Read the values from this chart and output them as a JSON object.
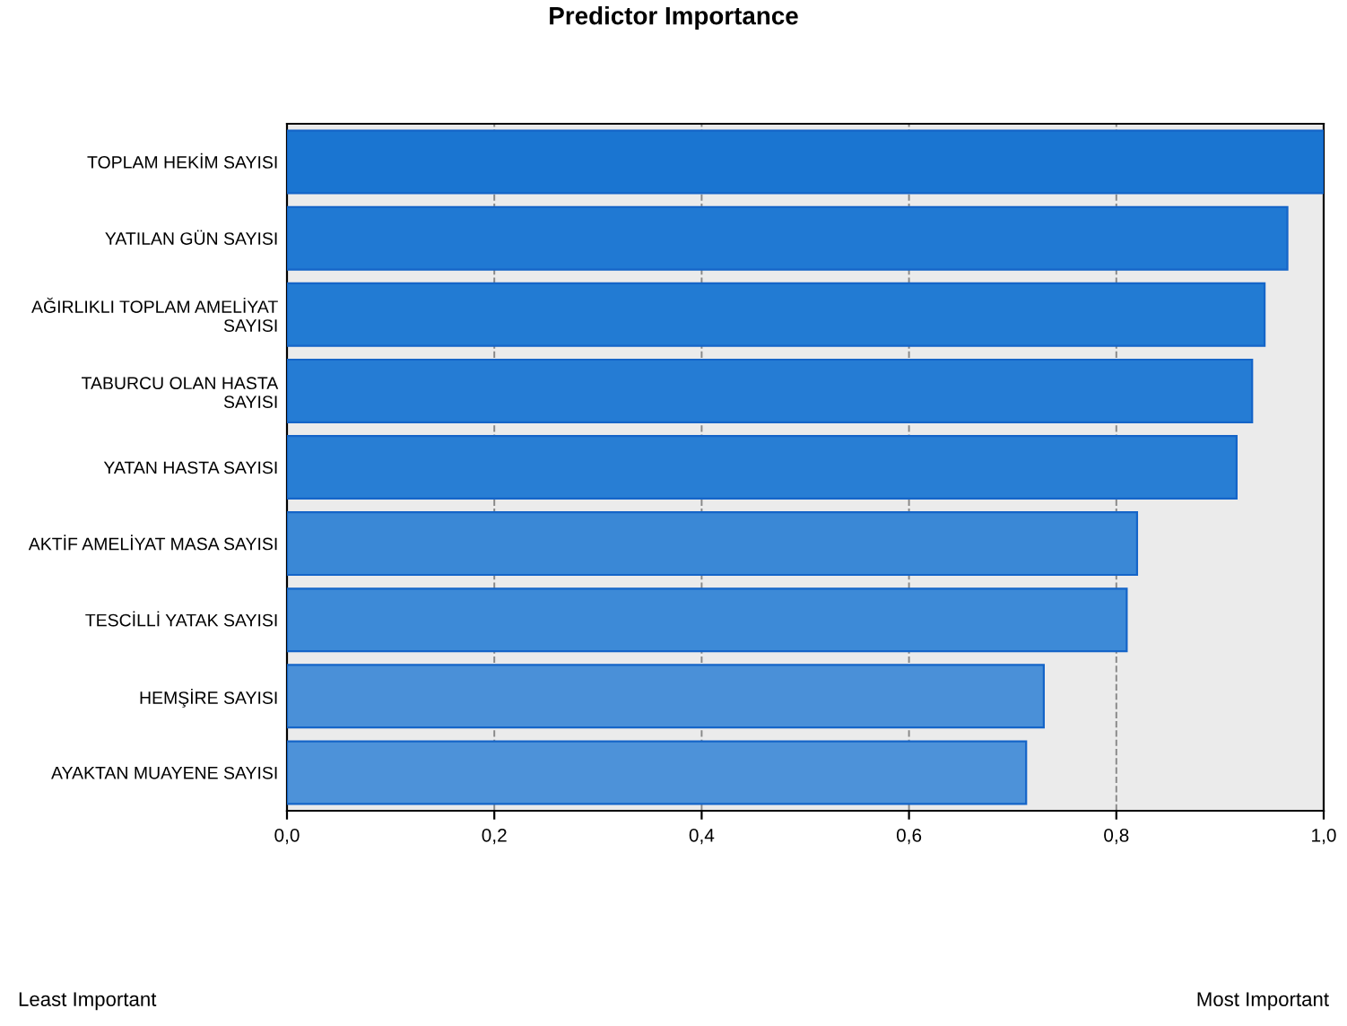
{
  "chart_data": {
    "type": "bar",
    "orientation": "horizontal",
    "title": "Predictor Importance",
    "categories": [
      "TOPLAM HEKİM SAYISI",
      "YATILAN GÜN SAYISI",
      "AĞIRLIKLI TOPLAM AMELİYAT\nSAYISI",
      "TABURCU OLAN HASTA\nSAYISI",
      "YATAN HASTA SAYISI",
      "AKTİF AMELİYAT MASA SAYISI",
      "TESCİLLİ YATAK SAYISI",
      "HEMŞİRE SAYISI",
      "AYAKTAN MUAYENE SAYISI"
    ],
    "values": [
      1.0,
      0.965,
      0.943,
      0.931,
      0.916,
      0.82,
      0.81,
      0.73,
      0.713
    ],
    "colors": [
      "#1a75d1",
      "#2079d3",
      "#227bd3",
      "#257cd4",
      "#287ed4",
      "#3a88d6",
      "#3d8ad7",
      "#4a90d8",
      "#4d92d9"
    ],
    "xlim": [
      0,
      1.0
    ],
    "xticks": [
      {
        "value": 0,
        "label": "0,0"
      },
      {
        "value": 0.2,
        "label": "0,2"
      },
      {
        "value": 0.4,
        "label": "0,4"
      },
      {
        "value": 0.6,
        "label": "0,6"
      },
      {
        "value": 0.8,
        "label": "0,8"
      },
      {
        "value": 1.0,
        "label": "1,0"
      }
    ],
    "grid": "x",
    "line_style": "dashed",
    "annotations": [
      "Least Important",
      "Most Important"
    ]
  }
}
